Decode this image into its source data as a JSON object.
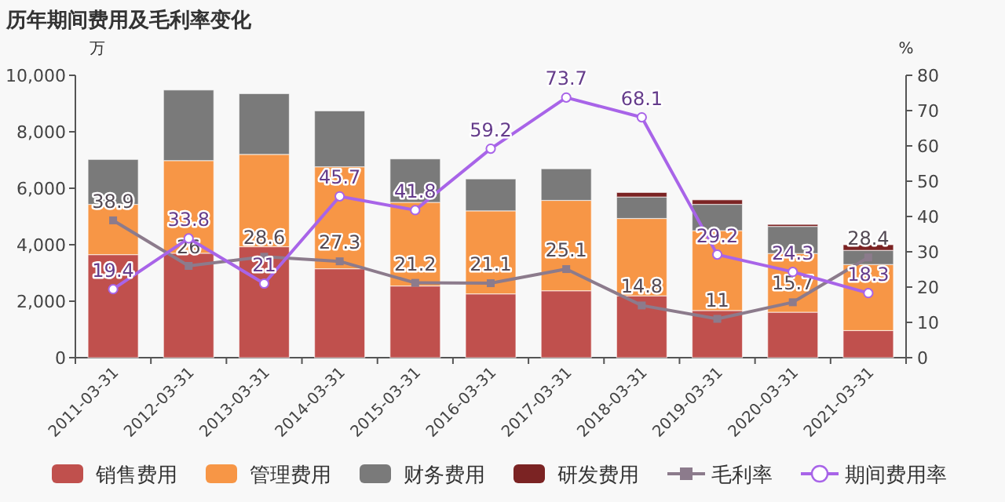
{
  "chart_data": {
    "type": "bar",
    "stacked": true,
    "title": "历年期间费用及毛利率变化",
    "ylabel": "万",
    "y2label": "%",
    "categories": [
      "2011-03-31",
      "2012-03-31",
      "2013-03-31",
      "2014-03-31",
      "2015-03-31",
      "2016-03-31",
      "2017-03-31",
      "2018-03-31",
      "2019-03-31",
      "2020-03-31",
      "2021-03-31"
    ],
    "ylim": [
      0,
      10000
    ],
    "yticks": [
      {
        "value": 0,
        "label": "0"
      },
      {
        "value": 2000,
        "label": "2,000"
      },
      {
        "value": 4000,
        "label": "4,000"
      },
      {
        "value": 6000,
        "label": "6,000"
      },
      {
        "value": 8000,
        "label": "8,000"
      },
      {
        "value": 10000,
        "label": "10,000"
      }
    ],
    "y2lim": [
      0,
      80
    ],
    "y2ticks": [
      0,
      10,
      20,
      30,
      40,
      50,
      60,
      70,
      80
    ],
    "legend": "bottom",
    "grid": false,
    "series": [
      {
        "name": "销售费用",
        "color": "#c0504d",
        "values": [
          3650,
          3700,
          3930,
          3150,
          2540,
          2260,
          2370,
          2190,
          1670,
          1610,
          960
        ]
      },
      {
        "name": "管理费用",
        "color": "#f79646",
        "values": [
          1780,
          3280,
          3270,
          3610,
          2960,
          2940,
          3200,
          2740,
          2830,
          2080,
          2340
        ]
      },
      {
        "name": "财务费用",
        "color": "#7a7a7a",
        "values": [
          1590,
          2500,
          2150,
          1980,
          1540,
          1130,
          1120,
          760,
          930,
          960,
          500
        ]
      },
      {
        "name": "研发费用",
        "color": "#7b2323",
        "values": [
          null,
          null,
          null,
          null,
          null,
          null,
          null,
          160,
          160,
          70,
          200
        ]
      },
      {
        "name": "毛利率",
        "type": "line",
        "axis": "y2",
        "marker": "square",
        "color": "#8c7b8c",
        "values": [
          38.9,
          26,
          28.6,
          27.3,
          21.2,
          21.1,
          25.1,
          14.8,
          11,
          15.7,
          28.4
        ],
        "value_labels": [
          "38.9",
          "26",
          "28.6",
          "27.3",
          "21.2",
          "21.1",
          "25.1",
          "14.8",
          "11",
          "15.7",
          "28.4"
        ]
      },
      {
        "name": "期间费用率",
        "type": "line",
        "axis": "y2",
        "marker": "circle",
        "color": "#a864e8",
        "values": [
          19.4,
          33.8,
          21,
          45.7,
          41.8,
          59.2,
          73.7,
          68.1,
          29.2,
          24.3,
          18.3
        ],
        "value_labels": [
          "19.4",
          "33.8",
          "21",
          "45.7",
          "41.8",
          "59.2",
          "73.7",
          "68.1",
          "29.2",
          "24.3",
          "18.3"
        ]
      }
    ]
  }
}
